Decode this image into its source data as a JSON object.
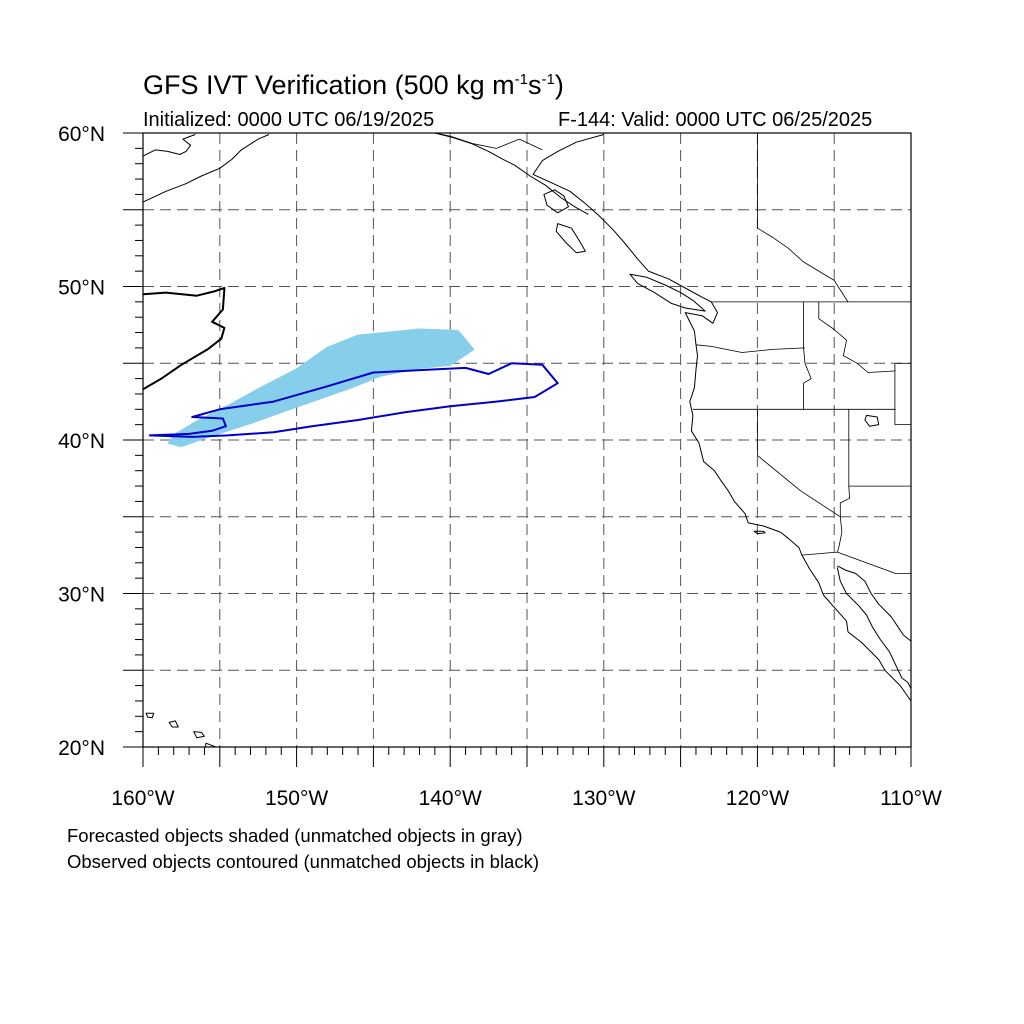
{
  "header": {
    "title_main": "GFS IVT Verification (500 kg m",
    "title_exp1": "-1",
    "title_mid": "s",
    "title_exp2": "-1",
    "title_end": ")",
    "initialized": "Initialized: 0000 UTC 06/19/2025",
    "valid": "F-144: Valid: 0000 UTC 06/25/2025"
  },
  "map": {
    "projection": "cylindrical-equidistant",
    "lon_range": [
      -160,
      -110
    ],
    "lat_range": [
      20,
      60
    ],
    "gridlines": "dashed, every 5 degrees",
    "lat_labels": [
      "20°N",
      "30°N",
      "40°N",
      "50°N",
      "60°N"
    ],
    "lon_labels": [
      "160°W",
      "150°W",
      "140°W",
      "130°W",
      "120°W",
      "110°W"
    ],
    "colors": {
      "forecast_fill": "#87ceeb",
      "observed_contour": "#0000cd",
      "unmatched_observed": "#000000",
      "coast": "#000000"
    },
    "forecast_object": {
      "status": "matched",
      "outline_lonlat": [
        [
          -157.5,
          39.6
        ],
        [
          -155.5,
          40.3
        ],
        [
          -153.0,
          41.1
        ],
        [
          -150.5,
          42.0
        ],
        [
          -148.5,
          42.7
        ],
        [
          -146.5,
          43.4
        ],
        [
          -144.5,
          44.2
        ],
        [
          -142.0,
          44.7
        ],
        [
          -140.0,
          44.9
        ],
        [
          -138.5,
          45.9
        ],
        [
          -139.5,
          47.1
        ],
        [
          -142.0,
          47.2
        ],
        [
          -146.0,
          46.8
        ],
        [
          -148.0,
          46.0
        ],
        [
          -150.0,
          44.6
        ],
        [
          -152.5,
          43.3
        ],
        [
          -154.5,
          42.2
        ],
        [
          -156.5,
          41.2
        ],
        [
          -158.0,
          40.3
        ],
        [
          -158.3,
          39.8
        ]
      ]
    },
    "observed_object": {
      "status": "matched",
      "outline_lonlat": [
        [
          -159.6,
          40.3
        ],
        [
          -157.0,
          40.4
        ],
        [
          -155.5,
          40.6
        ],
        [
          -154.6,
          40.9
        ],
        [
          -154.8,
          41.4
        ],
        [
          -156.8,
          41.5
        ],
        [
          -155.0,
          42.0
        ],
        [
          -151.5,
          42.5
        ],
        [
          -148.0,
          43.5
        ],
        [
          -145.0,
          44.4
        ],
        [
          -141.0,
          44.6
        ],
        [
          -139.0,
          44.7
        ],
        [
          -137.5,
          44.3
        ],
        [
          -136.0,
          45.0
        ],
        [
          -134.0,
          44.9
        ],
        [
          -133.0,
          43.7
        ],
        [
          -134.5,
          42.8
        ],
        [
          -137.0,
          42.5
        ],
        [
          -140.0,
          42.2
        ],
        [
          -143.0,
          41.8
        ],
        [
          -146.0,
          41.3
        ],
        [
          -149.0,
          40.9
        ],
        [
          -151.5,
          40.5
        ],
        [
          -154.5,
          40.3
        ],
        [
          -156.8,
          40.2
        ],
        [
          -159.6,
          40.3
        ]
      ]
    },
    "unmatched_observed_object": {
      "status": "unmatched",
      "outline_lonlat": [
        [
          -160.0,
          49.5
        ],
        [
          -158.5,
          49.6
        ],
        [
          -156.5,
          49.4
        ],
        [
          -155.3,
          49.7
        ],
        [
          -154.7,
          49.9
        ],
        [
          -154.8,
          48.5
        ],
        [
          -155.5,
          47.7
        ],
        [
          -154.7,
          47.3
        ],
        [
          -154.9,
          46.6
        ],
        [
          -155.8,
          45.9
        ],
        [
          -157.5,
          44.9
        ],
        [
          -158.8,
          44.0
        ],
        [
          -160.0,
          43.3
        ]
      ]
    }
  },
  "footer": {
    "note1": "Forecasted objects shaded (unmatched objects in gray)",
    "note2": "Observed objects contoured (unmatched objects in black)"
  }
}
